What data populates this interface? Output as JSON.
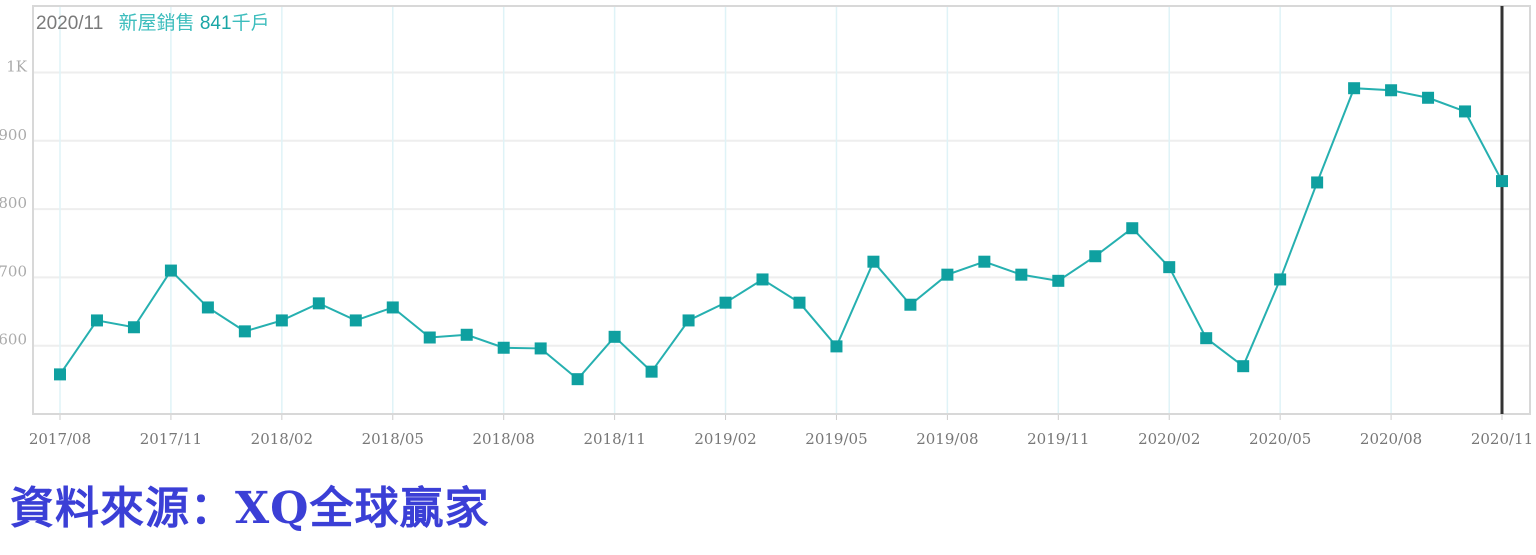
{
  "header": {
    "date": "2020/11",
    "series_label": "新屋銷售",
    "value": "841",
    "unit": "千戶"
  },
  "source_note": "資料來源：XQ全球贏家",
  "colors": {
    "line": "#26b0b0",
    "marker": "#0fa0a0",
    "cursor": "#333333",
    "grid": "#eeeeee",
    "vgrid": "#dff3f7"
  },
  "chart_data": {
    "type": "line",
    "title": "",
    "xlabel": "",
    "ylabel": "",
    "ylim": [
      500,
      1080
    ],
    "yticks": [
      600,
      700,
      800,
      900,
      1000
    ],
    "ytick_labels": [
      "600",
      "700",
      "800",
      "900",
      "1K"
    ],
    "grid": true,
    "marker": "square",
    "cursor_at": "2020/11",
    "x": [
      "2017/08",
      "2017/09",
      "2017/10",
      "2017/11",
      "2017/12",
      "2018/01",
      "2018/02",
      "2018/03",
      "2018/04",
      "2018/05",
      "2018/06",
      "2018/07",
      "2018/08",
      "2018/09",
      "2018/10",
      "2018/11",
      "2018/12",
      "2019/01",
      "2019/02",
      "2019/03",
      "2019/04",
      "2019/05",
      "2019/06",
      "2019/07",
      "2019/08",
      "2019/09",
      "2019/10",
      "2019/11",
      "2019/12",
      "2020/01",
      "2020/02",
      "2020/03",
      "2020/04",
      "2020/05",
      "2020/06",
      "2020/07",
      "2020/08",
      "2020/09",
      "2020/10",
      "2020/11"
    ],
    "xtick_labels": [
      "2017/08",
      "2017/11",
      "2018/02",
      "2018/05",
      "2018/08",
      "2018/11",
      "2019/02",
      "2019/05",
      "2019/08",
      "2019/11",
      "2020/02",
      "2020/05",
      "2020/08",
      "2020/11"
    ],
    "series": [
      {
        "name": "新屋銷售",
        "values": [
          558,
          637,
          627,
          710,
          656,
          621,
          637,
          662,
          637,
          656,
          612,
          616,
          597,
          596,
          551,
          613,
          562,
          637,
          663,
          697,
          663,
          599,
          723,
          660,
          704,
          723,
          704,
          695,
          731,
          772,
          715,
          611,
          570,
          697,
          839,
          977,
          974,
          963,
          943,
          841
        ]
      }
    ]
  }
}
